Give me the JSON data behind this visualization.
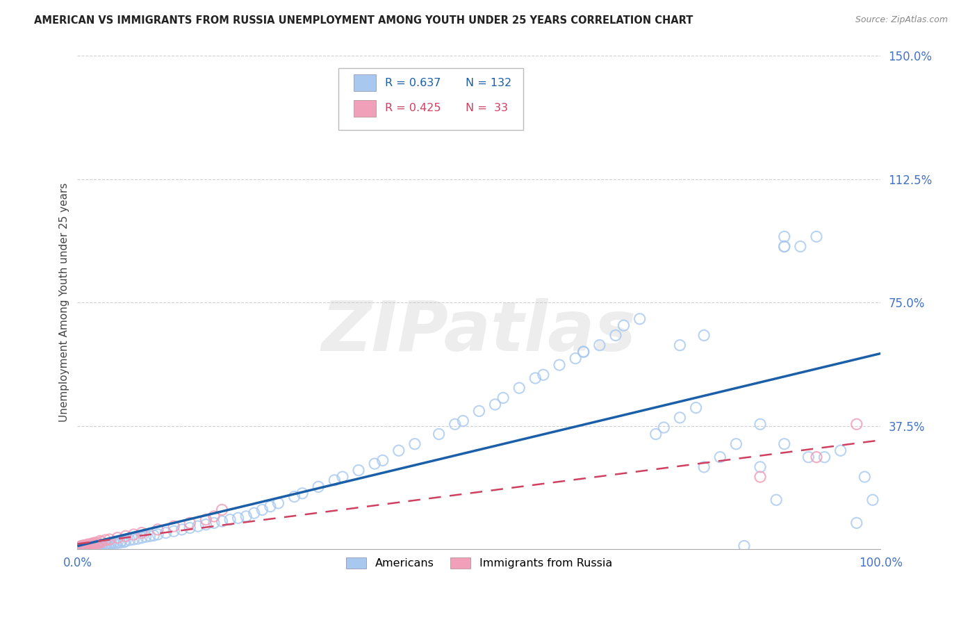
{
  "title": "AMERICAN VS IMMIGRANTS FROM RUSSIA UNEMPLOYMENT AMONG YOUTH UNDER 25 YEARS CORRELATION CHART",
  "source": "Source: ZipAtlas.com",
  "ylabel": "Unemployment Among Youth under 25 years",
  "watermark": "ZIPatlas",
  "xlim": [
    0.0,
    1.0
  ],
  "ylim": [
    0.0,
    1.5
  ],
  "yticks": [
    0.0,
    0.375,
    0.75,
    1.125,
    1.5
  ],
  "ytick_labels": [
    "",
    "37.5%",
    "75.0%",
    "112.5%",
    "150.0%"
  ],
  "xtick_left": "0.0%",
  "xtick_right": "100.0%",
  "americans_color": "#a8c8f0",
  "russia_color": "#f0a0b8",
  "americans_line_color": "#1a5fa8",
  "russia_line_color": "#d04060",
  "background_color": "#ffffff",
  "grid_color": "#d0d0d0",
  "title_color": "#222222",
  "source_color": "#888888",
  "tick_label_color": "#4472c4",
  "R_americans": "0.637",
  "N_americans": "132",
  "R_russia": "0.425",
  "N_russia": "33",
  "legend_label_americans": "Americans",
  "legend_label_russia": "Immigrants from Russia",
  "americans_x": [
    0.002,
    0.003,
    0.004,
    0.005,
    0.005,
    0.006,
    0.006,
    0.007,
    0.007,
    0.008,
    0.008,
    0.009,
    0.009,
    0.01,
    0.01,
    0.01,
    0.011,
    0.011,
    0.012,
    0.012,
    0.013,
    0.013,
    0.014,
    0.015,
    0.015,
    0.016,
    0.016,
    0.017,
    0.018,
    0.018,
    0.019,
    0.02,
    0.02,
    0.021,
    0.022,
    0.022,
    0.023,
    0.025,
    0.025,
    0.026,
    0.027,
    0.028,
    0.03,
    0.031,
    0.033,
    0.035,
    0.036,
    0.038,
    0.04,
    0.042,
    0.045,
    0.048,
    0.05,
    0.053,
    0.055,
    0.058,
    0.06,
    0.065,
    0.07,
    0.075,
    0.08,
    0.085,
    0.09,
    0.095,
    0.1,
    0.11,
    0.12,
    0.13,
    0.14,
    0.15,
    0.16,
    0.17,
    0.18,
    0.19,
    0.2,
    0.21,
    0.22,
    0.23,
    0.24,
    0.25,
    0.27,
    0.28,
    0.3,
    0.32,
    0.33,
    0.35,
    0.37,
    0.38,
    0.4,
    0.42,
    0.45,
    0.47,
    0.48,
    0.5,
    0.52,
    0.53,
    0.55,
    0.57,
    0.58,
    0.6,
    0.62,
    0.63,
    0.65,
    0.67,
    0.68,
    0.7,
    0.72,
    0.73,
    0.75,
    0.77,
    0.78,
    0.8,
    0.82,
    0.83,
    0.85,
    0.87,
    0.88,
    0.88,
    0.88,
    0.9,
    0.92,
    0.93,
    0.95,
    0.97,
    0.98,
    0.99,
    0.63,
    0.75,
    0.78,
    0.85,
    0.88,
    0.91
  ],
  "americans_y": [
    0.005,
    0.005,
    0.005,
    0.008,
    0.01,
    0.005,
    0.008,
    0.005,
    0.01,
    0.005,
    0.008,
    0.005,
    0.01,
    0.005,
    0.008,
    0.012,
    0.005,
    0.01,
    0.005,
    0.01,
    0.005,
    0.01,
    0.008,
    0.005,
    0.01,
    0.005,
    0.012,
    0.008,
    0.005,
    0.01,
    0.008,
    0.005,
    0.01,
    0.008,
    0.005,
    0.012,
    0.008,
    0.005,
    0.01,
    0.008,
    0.01,
    0.008,
    0.01,
    0.012,
    0.01,
    0.012,
    0.015,
    0.012,
    0.015,
    0.018,
    0.02,
    0.018,
    0.022,
    0.02,
    0.025,
    0.022,
    0.025,
    0.028,
    0.03,
    0.032,
    0.035,
    0.038,
    0.04,
    0.042,
    0.045,
    0.05,
    0.055,
    0.06,
    0.065,
    0.07,
    0.075,
    0.08,
    0.085,
    0.09,
    0.095,
    0.1,
    0.11,
    0.12,
    0.13,
    0.14,
    0.16,
    0.17,
    0.19,
    0.21,
    0.22,
    0.24,
    0.26,
    0.27,
    0.3,
    0.32,
    0.35,
    0.38,
    0.39,
    0.42,
    0.44,
    0.46,
    0.49,
    0.52,
    0.53,
    0.56,
    0.58,
    0.6,
    0.62,
    0.65,
    0.68,
    0.7,
    0.35,
    0.37,
    0.4,
    0.43,
    0.25,
    0.28,
    0.32,
    0.01,
    0.25,
    0.15,
    0.92,
    0.92,
    0.95,
    0.92,
    0.95,
    0.28,
    0.3,
    0.08,
    0.22,
    0.15,
    0.6,
    0.62,
    0.65,
    0.38,
    0.32,
    0.28
  ],
  "russia_x": [
    0.003,
    0.005,
    0.007,
    0.008,
    0.009,
    0.01,
    0.011,
    0.012,
    0.013,
    0.015,
    0.016,
    0.018,
    0.019,
    0.02,
    0.022,
    0.025,
    0.028,
    0.03,
    0.035,
    0.04,
    0.05,
    0.06,
    0.07,
    0.08,
    0.1,
    0.12,
    0.14,
    0.16,
    0.17,
    0.18,
    0.97,
    0.85,
    0.92
  ],
  "russia_y": [
    0.005,
    0.01,
    0.008,
    0.012,
    0.008,
    0.01,
    0.012,
    0.008,
    0.015,
    0.01,
    0.015,
    0.012,
    0.018,
    0.015,
    0.02,
    0.018,
    0.025,
    0.022,
    0.028,
    0.03,
    0.035,
    0.04,
    0.045,
    0.05,
    0.06,
    0.07,
    0.08,
    0.09,
    0.1,
    0.12,
    0.38,
    0.22,
    0.28
  ]
}
